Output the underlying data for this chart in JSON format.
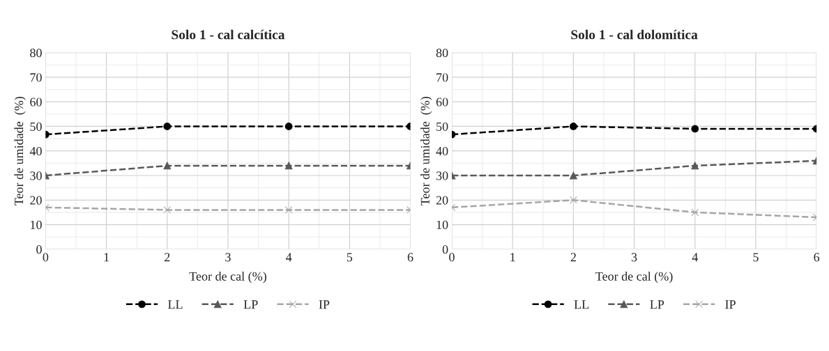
{
  "chart_data": [
    {
      "type": "line",
      "title": "Solo 1 - cal calcítica",
      "xlabel": "Teor de cal (%)",
      "ylabel": "Teor de umidade  (%)",
      "x": [
        0,
        2,
        4,
        6
      ],
      "xlim": [
        0,
        6
      ],
      "xticks": [
        0,
        1,
        2,
        3,
        4,
        5,
        6
      ],
      "ylim": [
        0,
        80
      ],
      "yticks": [
        0,
        10,
        20,
        30,
        40,
        50,
        60,
        70,
        80
      ],
      "grid": true,
      "legend": "bottom",
      "line_style": "dashed",
      "series": [
        {
          "name": "LL",
          "color": "#000000",
          "marker": "circle",
          "values": [
            46.7,
            50,
            50,
            50
          ]
        },
        {
          "name": "LP",
          "color": "#595959",
          "marker": "triangle",
          "values": [
            30,
            34,
            34,
            34
          ]
        },
        {
          "name": "IP",
          "color": "#a6a6a6",
          "marker": "cross",
          "values": [
            17,
            16,
            16,
            16
          ]
        }
      ]
    },
    {
      "type": "line",
      "title": "Solo 1 - cal dolomítica",
      "xlabel": "Teor de cal (%)",
      "ylabel": "Teor de umidade  (%)",
      "x": [
        0,
        2,
        4,
        6
      ],
      "xlim": [
        0,
        6
      ],
      "xticks": [
        0,
        1,
        2,
        3,
        4,
        5,
        6
      ],
      "ylim": [
        0,
        80
      ],
      "yticks": [
        0,
        10,
        20,
        30,
        40,
        50,
        60,
        70,
        80
      ],
      "grid": true,
      "legend": "bottom",
      "line_style": "dashed",
      "series": [
        {
          "name": "LL",
          "color": "#000000",
          "marker": "circle",
          "values": [
            46.7,
            50,
            49,
            49
          ]
        },
        {
          "name": "LP",
          "color": "#595959",
          "marker": "triangle",
          "values": [
            30,
            30,
            34,
            36
          ]
        },
        {
          "name": "IP",
          "color": "#a6a6a6",
          "marker": "cross",
          "values": [
            17,
            20,
            15,
            13
          ]
        }
      ]
    }
  ]
}
